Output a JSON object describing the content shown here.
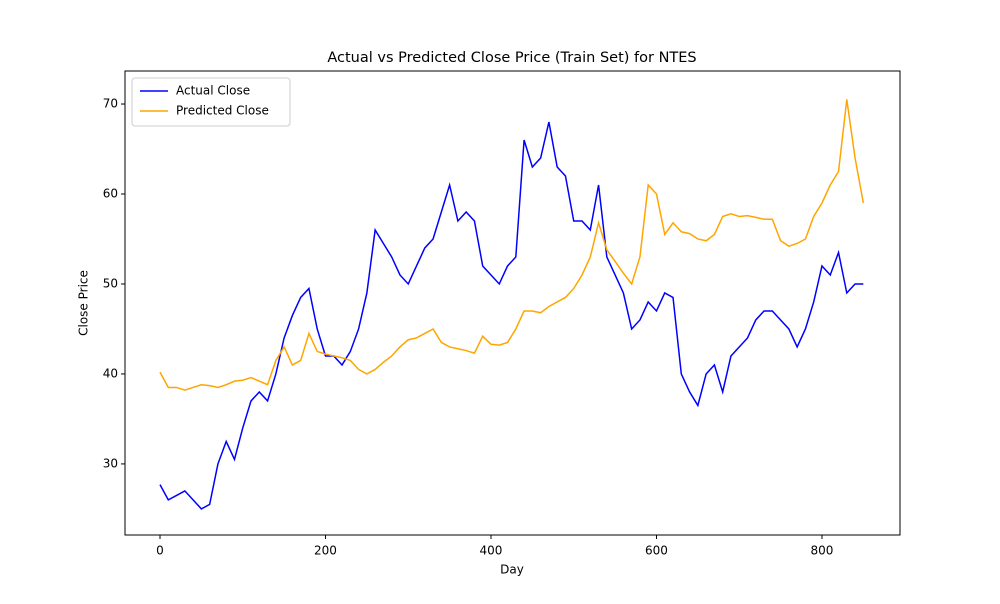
{
  "chart_data": {
    "type": "line",
    "title": "Actual vs Predicted Close Price (Train Set) for NTES",
    "x_label": "Day",
    "y_label": "Close Price",
    "x": [
      0,
      10,
      20,
      30,
      40,
      50,
      60,
      70,
      80,
      90,
      100,
      110,
      120,
      130,
      140,
      150,
      160,
      170,
      180,
      190,
      200,
      210,
      220,
      230,
      240,
      250,
      260,
      270,
      280,
      290,
      300,
      310,
      320,
      330,
      340,
      350,
      360,
      370,
      380,
      390,
      400,
      410,
      420,
      430,
      440,
      450,
      460,
      470,
      480,
      490,
      500,
      510,
      520,
      530,
      540,
      550,
      560,
      570,
      580,
      590,
      600,
      610,
      620,
      630,
      640,
      650,
      660,
      670,
      680,
      690,
      700,
      710,
      720,
      730,
      740,
      750,
      760,
      770,
      780,
      790,
      800,
      810,
      820,
      830,
      840,
      850
    ],
    "series": [
      {
        "name": "Actual Close",
        "color": "#0000ff",
        "values": [
          27.7,
          26,
          26.5,
          27,
          26,
          25,
          25.5,
          30,
          32.5,
          30.5,
          34,
          37,
          38,
          37,
          40,
          44,
          46.5,
          48.5,
          49.5,
          45,
          42,
          42,
          41,
          42.5,
          45,
          49,
          56,
          54.5,
          53,
          51,
          50,
          52,
          54,
          55,
          58,
          61,
          57,
          58,
          57,
          52,
          51,
          50,
          52,
          53,
          66,
          63,
          64,
          68,
          63,
          62,
          57,
          57,
          56,
          61,
          53,
          51,
          49,
          45,
          46,
          48,
          47,
          49,
          48.5,
          40,
          38,
          36.5,
          40,
          41,
          38,
          42,
          43,
          44,
          46,
          47,
          47,
          46,
          45,
          43,
          45,
          48,
          52,
          51,
          53.5,
          49,
          50,
          50
        ]
      },
      {
        "name": "Predicted Close",
        "color": "#ffa500",
        "values": [
          40.2,
          38.5,
          38.5,
          38.2,
          38.5,
          38.8,
          38.7,
          38.5,
          38.8,
          39.2,
          39.3,
          39.6,
          39.2,
          38.8,
          41.5,
          43,
          41,
          41.5,
          44.5,
          42.5,
          42.2,
          42,
          41.8,
          41.5,
          40.5,
          40,
          40.5,
          41.3,
          42,
          43,
          43.8,
          44,
          44.5,
          45,
          43.5,
          43,
          42.8,
          42.6,
          42.3,
          44.2,
          43.3,
          43.2,
          43.5,
          45,
          47,
          47,
          46.8,
          47.5,
          48,
          48.5,
          49.5,
          51,
          53,
          56.8,
          53.8,
          52.5,
          51.2,
          50,
          53,
          61,
          60,
          55.5,
          56.8,
          55.8,
          55.6,
          55,
          54.8,
          55.5,
          57.5,
          57.8,
          57.5,
          57.6,
          57.4,
          57.2,
          57.2,
          54.8,
          54.2,
          54.5,
          55,
          57.5,
          59,
          61,
          62.5,
          70.5,
          64,
          59
        ]
      }
    ],
    "xlim": [
      -42.3,
      894.3
    ],
    "ylim": [
      22.1,
      73.67
    ],
    "xticks": [
      0,
      200,
      400,
      600,
      800
    ],
    "yticks": [
      30,
      40,
      50,
      60,
      70
    ],
    "grid": false,
    "legend": "upper left"
  }
}
